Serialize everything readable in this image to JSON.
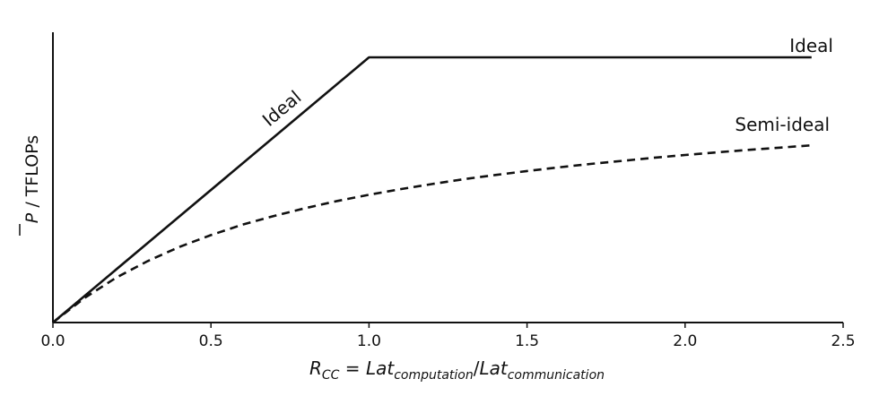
{
  "chart_data": {
    "type": "line",
    "xlabel": {
      "base": "R",
      "sub": "CC",
      "eq": " = ",
      "num": "Lat",
      "num_sub": "computation",
      "slash": "/",
      "den": "Lat",
      "den_sub": "communication"
    },
    "ylabel": {
      "symbol": "P",
      "unit": " / TFLOPs"
    },
    "xlim": [
      0.0,
      2.5
    ],
    "x_ticks": [
      "0.0",
      "0.5",
      "1.0",
      "1.5",
      "2.0",
      "2.5"
    ],
    "x_tick_values": [
      0.0,
      0.5,
      1.0,
      1.5,
      2.0,
      2.5
    ],
    "ylim": [
      0,
      1
    ],
    "grid": false,
    "series": [
      {
        "name": "Ideal",
        "style": "solid",
        "color": "#111111",
        "x": [
          0.0,
          1.0,
          2.4
        ],
        "y": [
          0.0,
          0.94,
          0.94
        ]
      },
      {
        "name": "Semi-ideal",
        "style": "dashed",
        "color": "#111111",
        "x": [
          0.0,
          0.1,
          0.2,
          0.3,
          0.4,
          0.5,
          0.6,
          0.7,
          0.8,
          0.9,
          1.0,
          1.1,
          1.2,
          1.3,
          1.4,
          1.5,
          1.6,
          1.7,
          1.8,
          1.9,
          2.0,
          2.1,
          2.2,
          2.3,
          2.4
        ],
        "y": [
          0.0,
          0.087,
          0.159,
          0.218,
          0.268,
          0.31,
          0.347,
          0.378,
          0.406,
          0.431,
          0.453,
          0.473,
          0.491,
          0.508,
          0.523,
          0.537,
          0.55,
          0.562,
          0.573,
          0.584,
          0.594,
          0.603,
          0.612,
          0.62,
          0.628
        ]
      }
    ],
    "annotations": {
      "ideal_slope_label": "Ideal",
      "ideal_flat_label": "Ideal",
      "semi_ideal_label": "Semi-ideal"
    }
  }
}
